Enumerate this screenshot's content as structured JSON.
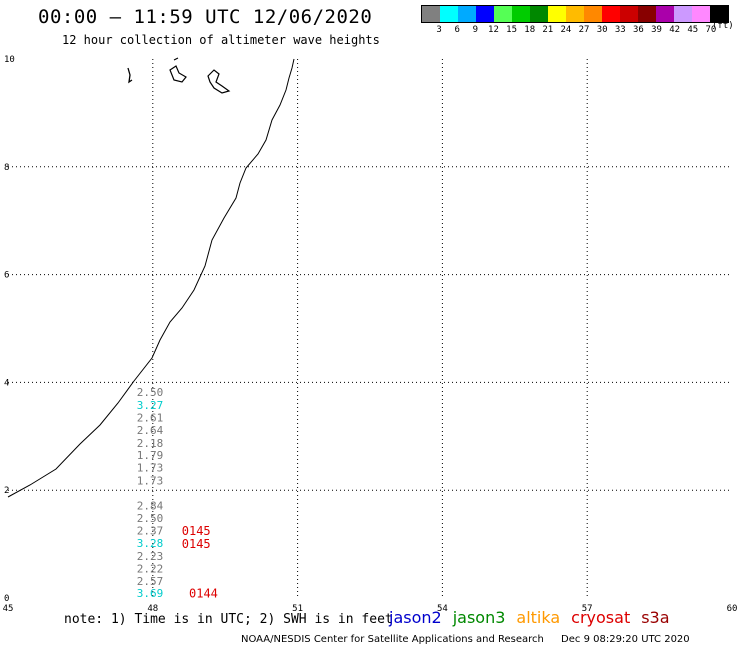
{
  "header": {
    "title": "00:00 – 11:59 UTC 12/06/2020",
    "subtitle": "12 hour collection of altimeter wave heights"
  },
  "legend": {
    "colors": [
      "#808080",
      "#00ffff",
      "#00aaff",
      "#0000ff",
      "#55ff55",
      "#00cc00",
      "#008800",
      "#ffff00",
      "#ffbb00",
      "#ff8800",
      "#ff0000",
      "#cc0000",
      "#880000",
      "#aa00aa",
      "#cc99ff",
      "#ff88ff",
      "#000000"
    ],
    "labels": [
      "3",
      "6",
      "9",
      "12",
      "15",
      "18",
      "21",
      "24",
      "27",
      "30",
      "33",
      "36",
      "39",
      "42",
      "45",
      "70"
    ],
    "unit": "(ft)"
  },
  "map": {
    "lon_range": [
      45,
      60
    ],
    "lat_range": [
      0,
      10
    ],
    "x_ticks": [
      "45",
      "48",
      "51",
      "54",
      "57",
      "60"
    ],
    "y_ticks": [
      "0",
      "2",
      "4",
      "6",
      "8",
      "10"
    ],
    "grid_lons": [
      48,
      51,
      54,
      57
    ],
    "grid_lats": [
      2,
      4,
      6,
      8
    ],
    "swh_track": {
      "lon": 48,
      "points": [
        {
          "lat": 3.82,
          "value": "2.50",
          "color": "#777777"
        },
        {
          "lat": 3.58,
          "value": "3.27",
          "color": "#00cccc"
        },
        {
          "lat": 3.35,
          "value": "2.61",
          "color": "#777777"
        },
        {
          "lat": 3.12,
          "value": "2.64",
          "color": "#777777"
        },
        {
          "lat": 2.88,
          "value": "2.18",
          "color": "#777777"
        },
        {
          "lat": 2.65,
          "value": "1.79",
          "color": "#777777"
        },
        {
          "lat": 2.42,
          "value": "1.73",
          "color": "#777777"
        },
        {
          "lat": 2.18,
          "value": "1.73",
          "color": "#777777"
        },
        {
          "lat": 1.72,
          "value": "2.84",
          "color": "#777777"
        },
        {
          "lat": 1.48,
          "value": "2.50",
          "color": "#777777"
        },
        {
          "lat": 1.25,
          "value": "2.37",
          "color": "#777777"
        },
        {
          "lat": 1.02,
          "value": "3.28",
          "color": "#00cccc"
        },
        {
          "lat": 0.78,
          "value": "2.23",
          "color": "#777777"
        },
        {
          "lat": 0.55,
          "value": "2.22",
          "color": "#777777"
        },
        {
          "lat": 0.32,
          "value": "2.57",
          "color": "#777777"
        },
        {
          "lat": 0.09,
          "value": "3.69",
          "color": "#00cccc"
        }
      ]
    },
    "time_labels": [
      {
        "lat": 1.24,
        "lon": 48.6,
        "value": "0145",
        "color": "#dd0000"
      },
      {
        "lat": 1.0,
        "lon": 48.6,
        "value": "0145",
        "color": "#dd0000"
      },
      {
        "lat": 0.08,
        "lon": 48.75,
        "value": "0144",
        "color": "#dd0000"
      }
    ]
  },
  "note": "note: 1) Time is in UTC; 2) SWH is in feet",
  "satellites": [
    {
      "name": "jason2",
      "color": "#0000cc"
    },
    {
      "name": "jason3",
      "color": "#008800"
    },
    {
      "name": "altika",
      "color": "#ff9900"
    },
    {
      "name": "cryosat",
      "color": "#dd0000"
    },
    {
      "name": "s3a",
      "color": "#990000"
    }
  ],
  "footer": {
    "credit": "NOAA/NESDIS Center for Satellite Applications and Research",
    "stamp": "Dec  9 08:29:20 UTC 2020"
  }
}
